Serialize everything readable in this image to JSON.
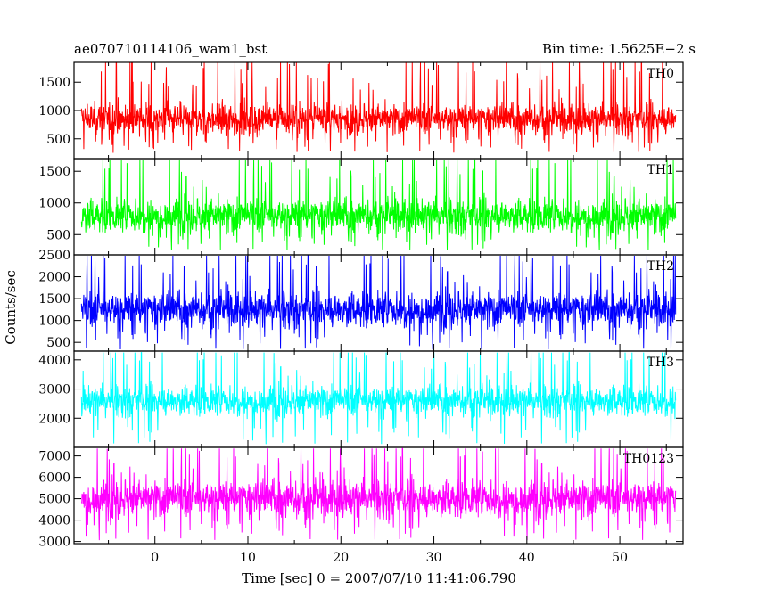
{
  "header": {
    "left_title": "ae070710114106_wam1_bst",
    "right_title": "Bin time: 1.5625E−2 s"
  },
  "chart_data": {
    "type": "line",
    "ylabel": "Counts/sec",
    "xlabel": "Time [sec] 0 = 2007/07/10 11:41:06.790",
    "xlim": [
      -8.7,
      56.8
    ],
    "x_data_range": [
      -7.9,
      56.0
    ],
    "xticks": [
      0,
      10,
      20,
      30,
      40,
      50
    ],
    "panels": [
      {
        "name": "TH0",
        "color": "#ff0000",
        "ylim": [
          150,
          1850
        ],
        "yticks": [
          500,
          1000,
          1500
        ],
        "baseline": 850,
        "noise": 230,
        "min": 250,
        "max": 1850
      },
      {
        "name": "TH1",
        "color": "#00ff00",
        "ylim": [
          180,
          1700
        ],
        "yticks": [
          500,
          1000,
          1500
        ],
        "baseline": 800,
        "noise": 230,
        "min": 250,
        "max": 1680
      },
      {
        "name": "TH2",
        "color": "#0000ff",
        "ylim": [
          300,
          2500
        ],
        "yticks": [
          500,
          1000,
          1500,
          2000,
          2500
        ],
        "baseline": 1250,
        "noise": 350,
        "min": 330,
        "max": 2480
      },
      {
        "name": "TH3",
        "color": "#00ffff",
        "ylim": [
          1000,
          4300
        ],
        "yticks": [
          2000,
          3000,
          4000
        ],
        "baseline": 2600,
        "noise": 450,
        "min": 1100,
        "max": 4250
      },
      {
        "name": "TH0123",
        "color": "#ff00ff",
        "ylim": [
          2900,
          7400
        ],
        "yticks": [
          3000,
          4000,
          5000,
          6000,
          7000
        ],
        "baseline": 5000,
        "noise": 750,
        "min": 3050,
        "max": 7350
      }
    ]
  }
}
